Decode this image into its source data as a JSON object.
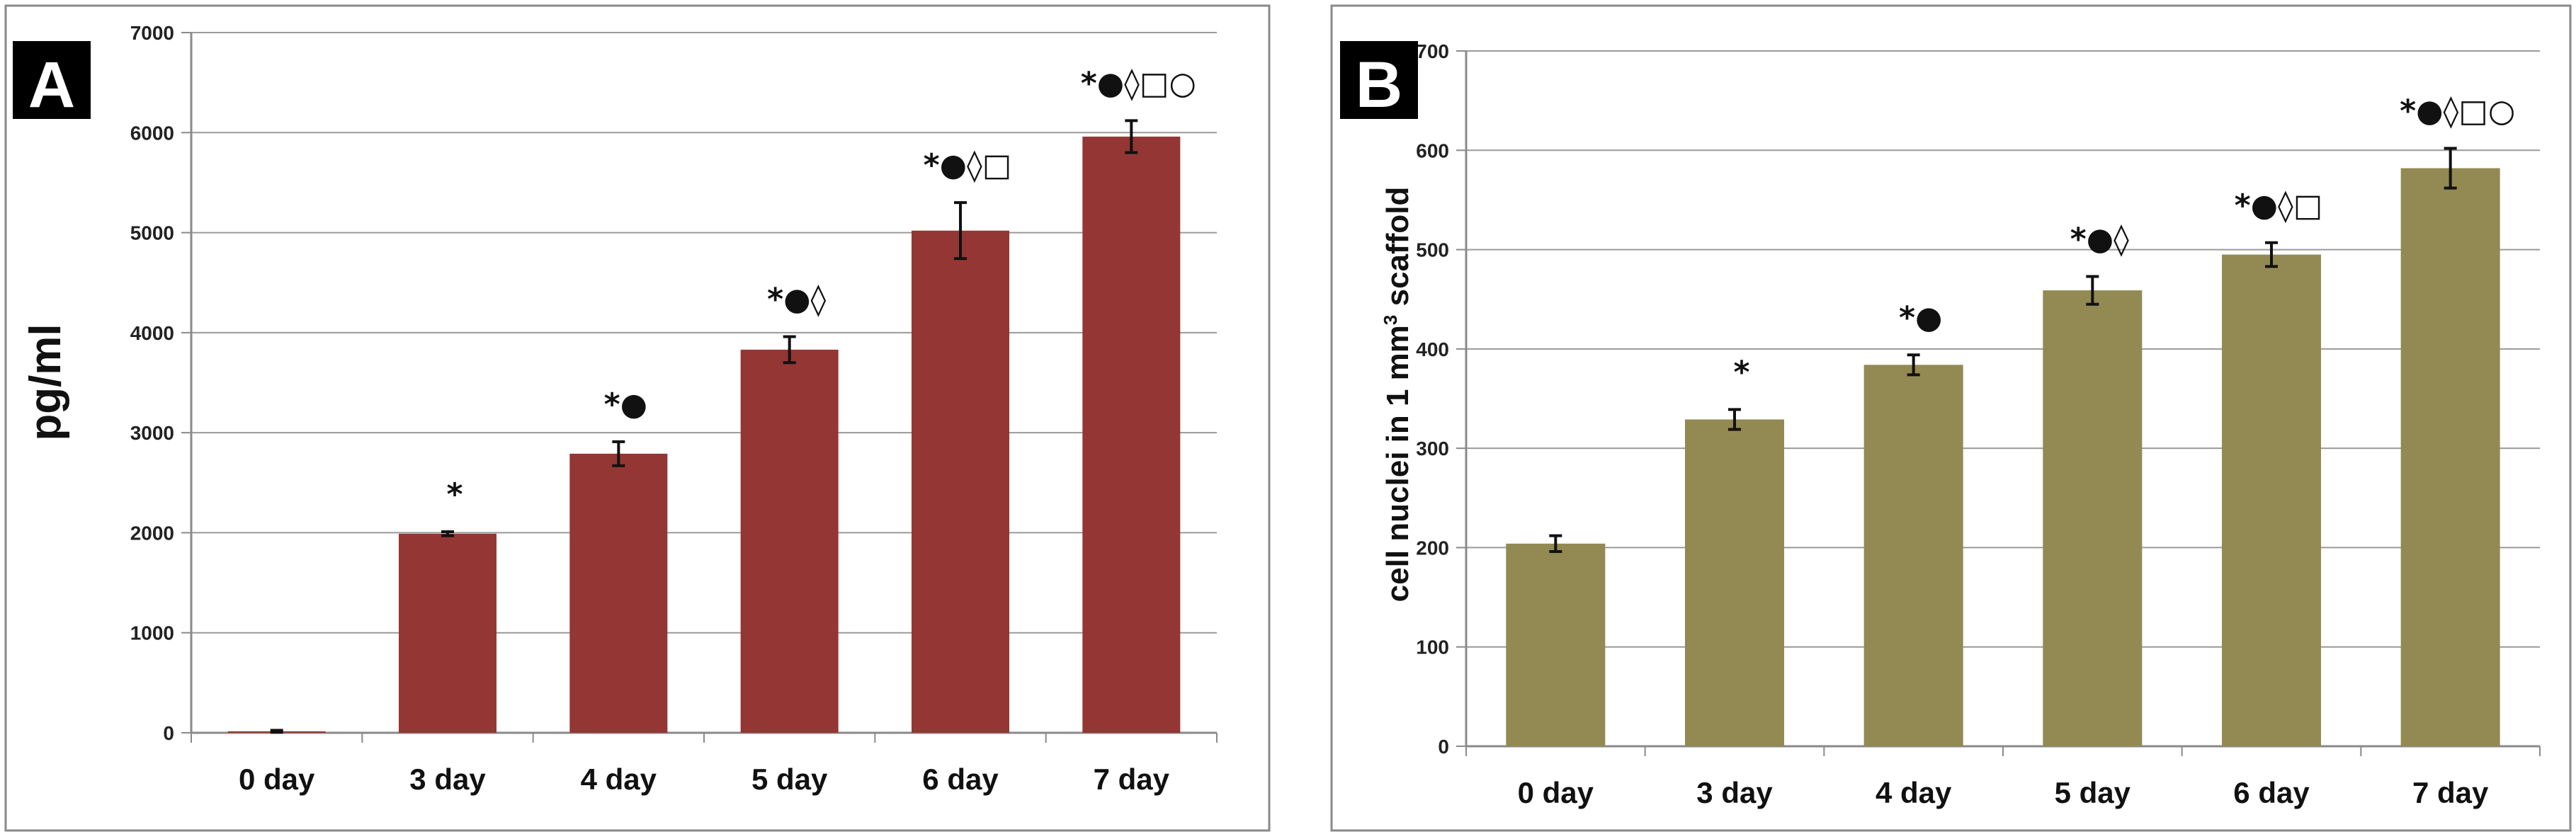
{
  "chart_data": [
    {
      "type": "bar",
      "panel_label": "A",
      "ylabel": "pg/ml",
      "ylabel_sup": "",
      "ylabel_after": "",
      "categories": [
        "0 day",
        "3 day",
        "4 day",
        "5 day",
        "6 day",
        "7 day"
      ],
      "values": [
        15,
        1990,
        2790,
        3830,
        5020,
        5960
      ],
      "errors": [
        10,
        20,
        120,
        130,
        280,
        160
      ],
      "annotations": [
        "",
        "*",
        "*●",
        "*●◊",
        "*●◊□",
        "*●◊□○"
      ],
      "ylim": [
        0,
        7000
      ],
      "ytick_step": 1000,
      "bar_color": "#943634",
      "grid": true
    },
    {
      "type": "bar",
      "panel_label": "B",
      "ylabel": "cell  nuclei  in  1 mm",
      "ylabel_sup": "3",
      "ylabel_after": " scaffold",
      "categories": [
        "0 day",
        "3 day",
        "4 day",
        "5 day",
        "6 day",
        "7 day"
      ],
      "values": [
        204,
        329,
        384,
        459,
        495,
        582
      ],
      "errors": [
        8,
        10,
        10,
        14,
        12,
        20
      ],
      "annotations": [
        "",
        "*",
        "*●",
        "*●◊",
        "*●◊□",
        "*●◊□○"
      ],
      "ylim": [
        0,
        700
      ],
      "ytick_step": 100,
      "bar_color": "#938953",
      "grid": true
    }
  ]
}
